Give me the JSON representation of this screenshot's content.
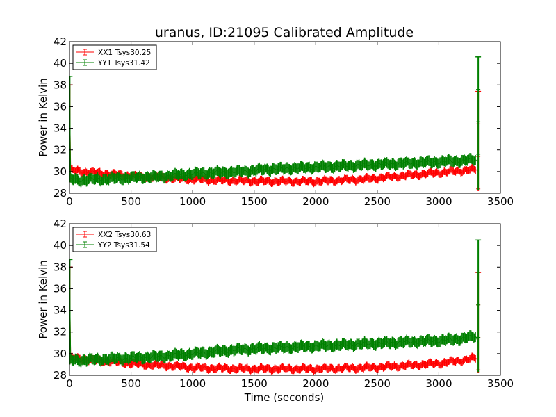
{
  "figure": {
    "title": "uranus, ID:21095 Calibrated Amplitude",
    "xlabel": "Time (seconds)"
  },
  "chart_data": [
    {
      "type": "line",
      "title": "uranus, ID:21095 Calibrated Amplitude",
      "xlabel": "",
      "ylabel": "Power in Kelvin",
      "xlim": [
        0,
        3500
      ],
      "ylim": [
        28,
        42
      ],
      "xticks": [
        "0",
        "500",
        "1000",
        "1500",
        "2000",
        "2500",
        "3000",
        "3500"
      ],
      "yticks": [
        "28",
        "30",
        "32",
        "34",
        "36",
        "38",
        "40",
        "42"
      ],
      "legend_position": "top-left",
      "series": [
        {
          "name": "XX1 Tsys30.25",
          "color": "#ff0000",
          "x": [
            0,
            10,
            100,
            200,
            300,
            400,
            500,
            600,
            700,
            800,
            900,
            1000,
            1200,
            1400,
            1600,
            1800,
            2000,
            2200,
            2400,
            2600,
            2800,
            3000,
            3200,
            3300,
            3310,
            3320
          ],
          "y": [
            38.0,
            30.1,
            30.0,
            29.9,
            29.8,
            29.7,
            29.6,
            29.5,
            29.5,
            29.4,
            29.3,
            29.3,
            29.2,
            29.15,
            29.1,
            29.1,
            29.1,
            29.2,
            29.3,
            29.5,
            29.7,
            29.9,
            30.1,
            30.2,
            37.4,
            30.0
          ],
          "error_band": 0.35,
          "spike": {
            "x": 3320,
            "low": 28.2,
            "high": 37.4
          }
        },
        {
          "name": "YY1 Tsys31.42",
          "color": "#008000",
          "x": [
            0,
            10,
            100,
            200,
            300,
            400,
            500,
            600,
            700,
            800,
            900,
            1000,
            1200,
            1400,
            1600,
            1800,
            2000,
            2200,
            2400,
            2600,
            2800,
            3000,
            3200,
            3300,
            3310,
            3320
          ],
          "y": [
            38.8,
            29.3,
            29.2,
            29.3,
            29.3,
            29.4,
            29.4,
            29.5,
            29.5,
            29.6,
            29.7,
            29.8,
            29.9,
            30.0,
            30.2,
            30.3,
            30.4,
            30.5,
            30.6,
            30.7,
            30.8,
            30.9,
            31.0,
            31.1,
            40.6,
            30.8
          ],
          "error_band": 0.5,
          "spike": {
            "x": 3320,
            "low": 28.3,
            "high": 40.6
          }
        }
      ]
    },
    {
      "type": "line",
      "title": "",
      "xlabel": "Time (seconds)",
      "ylabel": "Power in Kelvin",
      "xlim": [
        0,
        3500
      ],
      "ylim": [
        28,
        42
      ],
      "xticks": [
        "0",
        "500",
        "1000",
        "1500",
        "2000",
        "2500",
        "3000",
        "3500"
      ],
      "yticks": [
        "28",
        "30",
        "32",
        "34",
        "36",
        "38",
        "40",
        "42"
      ],
      "legend_position": "top-left",
      "series": [
        {
          "name": "XX2 Tsys30.63",
          "color": "#ff0000",
          "x": [
            0,
            10,
            100,
            200,
            300,
            400,
            500,
            600,
            700,
            800,
            900,
            1000,
            1200,
            1400,
            1600,
            1800,
            2000,
            2200,
            2400,
            2600,
            2800,
            3000,
            3200,
            3300,
            3310,
            3320
          ],
          "y": [
            38.0,
            29.6,
            29.5,
            29.4,
            29.3,
            29.2,
            29.1,
            29.0,
            28.95,
            28.9,
            28.8,
            28.7,
            28.65,
            28.6,
            28.6,
            28.6,
            28.6,
            28.65,
            28.7,
            28.8,
            28.95,
            29.1,
            29.4,
            29.6,
            37.5,
            29.3
          ],
          "error_band": 0.35,
          "spike": {
            "x": 3320,
            "low": 28.2,
            "high": 37.5
          }
        },
        {
          "name": "YY2 Tsys31.54",
          "color": "#008000",
          "x": [
            0,
            10,
            100,
            200,
            300,
            400,
            500,
            600,
            700,
            800,
            900,
            1000,
            1200,
            1400,
            1600,
            1800,
            2000,
            2200,
            2400,
            2600,
            2800,
            3000,
            3200,
            3300,
            3310,
            3320
          ],
          "y": [
            38.7,
            29.4,
            29.4,
            29.45,
            29.5,
            29.55,
            29.6,
            29.65,
            29.7,
            29.8,
            29.9,
            30.0,
            30.2,
            30.4,
            30.5,
            30.6,
            30.7,
            30.8,
            30.9,
            31.0,
            31.1,
            31.2,
            31.4,
            31.6,
            40.5,
            31.0
          ],
          "error_band": 0.5,
          "spike": {
            "x": 3320,
            "low": 28.3,
            "high": 40.5
          }
        }
      ]
    }
  ]
}
